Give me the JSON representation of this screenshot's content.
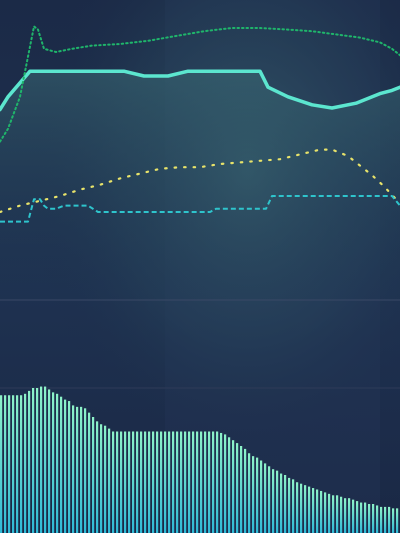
{
  "colors": {
    "bg_top": "#1b2a47",
    "bg_mid": "#2a3d5a",
    "glow": "#3a6470",
    "lower_bg": "#1d2d4d",
    "divider": "#3a4866",
    "primary": "#5ce6cf",
    "dotted_green": "#1fb56b",
    "dashed_cyan": "#2ec4cc",
    "dotted_yellow": "#e8e36a",
    "bars_top": "#8ef2c9",
    "bars_bottom": "#2fb9d6"
  },
  "chart_data": [
    {
      "type": "line",
      "title": "",
      "xlabel": "",
      "ylabel": "",
      "grid": false,
      "legend": "none",
      "xlim": [
        0,
        100
      ],
      "ylim": [
        0,
        100
      ],
      "series": [
        {
          "name": "primary",
          "style": "solid",
          "x": [
            0,
            2,
            7.5,
            31,
            36,
            42,
            47,
            65,
            67,
            72,
            78,
            83,
            89,
            95,
            98,
            100
          ],
          "y": [
            72,
            76,
            84,
            84,
            82.5,
            82.5,
            84,
            84,
            79,
            76,
            73.5,
            72.5,
            74,
            77,
            78,
            79
          ]
        },
        {
          "name": "green-dotted",
          "style": "dotted",
          "x": [
            0,
            2,
            5,
            8.5,
            9.5,
            11,
            14,
            18,
            23,
            30,
            37,
            44,
            51,
            58,
            65,
            72,
            78,
            84,
            90,
            95,
            98,
            100
          ],
          "y": [
            62,
            66,
            76,
            98,
            97,
            91,
            90,
            91,
            92,
            92.5,
            93.5,
            95,
            96.5,
            97.5,
            97.5,
            97,
            96.5,
            95.5,
            94.5,
            93,
            91,
            89
          ]
        },
        {
          "name": "yellow-dotted",
          "style": "dotted",
          "x": [
            0,
            5,
            10,
            15,
            20,
            25,
            30,
            35,
            40,
            45,
            50,
            55,
            60,
            65,
            70,
            75,
            80,
            83,
            87,
            90,
            93,
            96,
            99
          ],
          "y": [
            40,
            42,
            43.5,
            45,
            47,
            48.5,
            50.5,
            52,
            53.5,
            54,
            54,
            55,
            55.5,
            56,
            56.5,
            58,
            59.5,
            59.5,
            57.5,
            54.5,
            51.5,
            48,
            44
          ]
        },
        {
          "name": "cyan-dashed",
          "style": "dashed",
          "x": [
            0,
            7,
            8.5,
            10,
            11,
            12,
            14,
            16,
            22,
            24.5,
            33,
            45,
            52.5,
            54,
            60,
            66.5,
            68,
            90,
            98,
            100
          ],
          "y": [
            37,
            37,
            44,
            44,
            42,
            41,
            41,
            42,
            42,
            40,
            40,
            40,
            40,
            41,
            41,
            41,
            45,
            45,
            45,
            42
          ]
        }
      ]
    },
    {
      "type": "bar",
      "title": "",
      "xlabel": "",
      "ylabel": "",
      "grid": false,
      "legend": "none",
      "ylim": [
        0,
        100
      ],
      "values": [
        95,
        95,
        95,
        95,
        95,
        95,
        96,
        98,
        100,
        100,
        101,
        101,
        99,
        97,
        96,
        94,
        92,
        91,
        88,
        87,
        87,
        86,
        83,
        80,
        77,
        75,
        74,
        72,
        70,
        70,
        70,
        70,
        70,
        70,
        70,
        70,
        70,
        70,
        70,
        70,
        70,
        70,
        70,
        70,
        70,
        70,
        70,
        70,
        70,
        70,
        70,
        70,
        70,
        70,
        70,
        69,
        68,
        66,
        64,
        62,
        60,
        58,
        55,
        53,
        52,
        50,
        48,
        46,
        44,
        43,
        41,
        40,
        38,
        37,
        35,
        34,
        33,
        32,
        31,
        30,
        29,
        28,
        27,
        26,
        26,
        25,
        24,
        24,
        23,
        22,
        21,
        21,
        20,
        20,
        19,
        18,
        18,
        18,
        17,
        17
      ]
    }
  ]
}
